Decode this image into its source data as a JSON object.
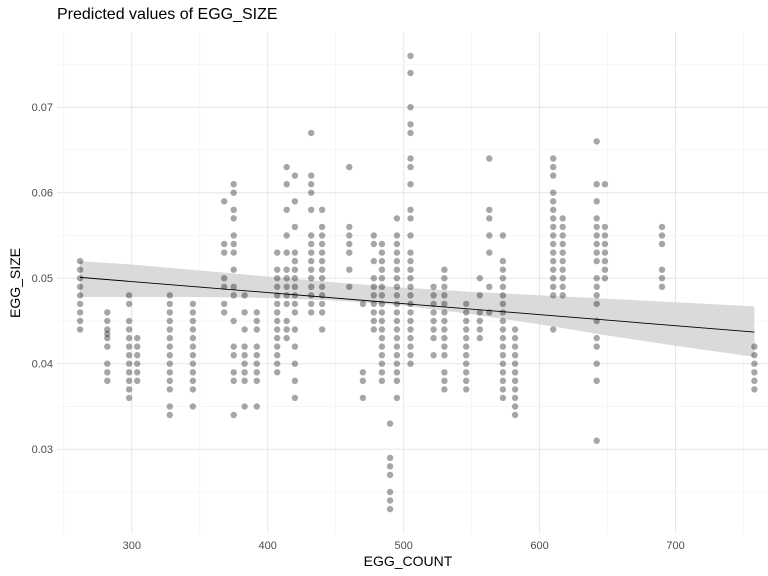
{
  "chart_data": {
    "type": "scatter",
    "title": "Predicted values of EGG_SIZE",
    "xlabel": "EGG_COUNT",
    "ylabel": "EGG_SIZE",
    "xlim": [
      245,
      768
    ],
    "ylim": [
      0.0202,
      0.0788
    ],
    "x_ticks": [
      300,
      400,
      500,
      600,
      700
    ],
    "y_ticks": [
      0.03,
      0.04,
      0.05,
      0.06,
      0.07
    ],
    "grid": true,
    "point_color": "#000000",
    "point_alpha": 0.35,
    "band_color": "#d4d4d4",
    "line_color": "#000000",
    "fit_line": {
      "x": [
        262,
        758
      ],
      "y": [
        0.0501,
        0.0437
      ]
    },
    "confidence_band": {
      "x": [
        262,
        300,
        350,
        400,
        450,
        500,
        550,
        600,
        650,
        700,
        758
      ],
      "lower": [
        0.0478,
        0.0478,
        0.0478,
        0.0477,
        0.0474,
        0.0468,
        0.0458,
        0.0446,
        0.0433,
        0.0421,
        0.0408
      ],
      "upper": [
        0.052,
        0.0516,
        0.0509,
        0.0502,
        0.0495,
        0.0489,
        0.0484,
        0.048,
        0.0476,
        0.0472,
        0.0467
      ]
    },
    "points": [
      [
        262,
        0.052
      ],
      [
        262,
        0.051
      ],
      [
        262,
        0.05
      ],
      [
        262,
        0.049
      ],
      [
        262,
        0.048
      ],
      [
        262,
        0.047
      ],
      [
        262,
        0.046
      ],
      [
        262,
        0.045
      ],
      [
        262,
        0.044
      ],
      [
        282,
        0.046
      ],
      [
        282,
        0.045
      ],
      [
        282,
        0.044
      ],
      [
        282,
        0.0435
      ],
      [
        282,
        0.043
      ],
      [
        282,
        0.042
      ],
      [
        282,
        0.04
      ],
      [
        282,
        0.039
      ],
      [
        282,
        0.038
      ],
      [
        298,
        0.048
      ],
      [
        298,
        0.047
      ],
      [
        298,
        0.045
      ],
      [
        298,
        0.044
      ],
      [
        298,
        0.043
      ],
      [
        298,
        0.042
      ],
      [
        298,
        0.041
      ],
      [
        298,
        0.04
      ],
      [
        298,
        0.039
      ],
      [
        298,
        0.038
      ],
      [
        298,
        0.037
      ],
      [
        298,
        0.036
      ],
      [
        304,
        0.043
      ],
      [
        304,
        0.042
      ],
      [
        304,
        0.041
      ],
      [
        304,
        0.04
      ],
      [
        304,
        0.039
      ],
      [
        304,
        0.038
      ],
      [
        328,
        0.048
      ],
      [
        328,
        0.047
      ],
      [
        328,
        0.046
      ],
      [
        328,
        0.045
      ],
      [
        328,
        0.044
      ],
      [
        328,
        0.043
      ],
      [
        328,
        0.042
      ],
      [
        328,
        0.041
      ],
      [
        328,
        0.04
      ],
      [
        328,
        0.039
      ],
      [
        328,
        0.038
      ],
      [
        328,
        0.037
      ],
      [
        328,
        0.035
      ],
      [
        328,
        0.034
      ],
      [
        345,
        0.047
      ],
      [
        345,
        0.046
      ],
      [
        345,
        0.045
      ],
      [
        345,
        0.044
      ],
      [
        345,
        0.043
      ],
      [
        345,
        0.042
      ],
      [
        345,
        0.041
      ],
      [
        345,
        0.04
      ],
      [
        345,
        0.039
      ],
      [
        345,
        0.038
      ],
      [
        345,
        0.037
      ],
      [
        345,
        0.035
      ],
      [
        368,
        0.059
      ],
      [
        368,
        0.054
      ],
      [
        368,
        0.053
      ],
      [
        368,
        0.05
      ],
      [
        368,
        0.049
      ],
      [
        368,
        0.047
      ],
      [
        368,
        0.046
      ],
      [
        375,
        0.061
      ],
      [
        375,
        0.06
      ],
      [
        375,
        0.058
      ],
      [
        375,
        0.057
      ],
      [
        375,
        0.055
      ],
      [
        375,
        0.054
      ],
      [
        375,
        0.053
      ],
      [
        375,
        0.051
      ],
      [
        375,
        0.049
      ],
      [
        375,
        0.048
      ],
      [
        375,
        0.045
      ],
      [
        375,
        0.042
      ],
      [
        375,
        0.041
      ],
      [
        375,
        0.039
      ],
      [
        375,
        0.038
      ],
      [
        375,
        0.034
      ],
      [
        383,
        0.048
      ],
      [
        383,
        0.046
      ],
      [
        383,
        0.044
      ],
      [
        383,
        0.042
      ],
      [
        383,
        0.041
      ],
      [
        383,
        0.04
      ],
      [
        383,
        0.039
      ],
      [
        383,
        0.038
      ],
      [
        383,
        0.035
      ],
      [
        392,
        0.046
      ],
      [
        392,
        0.045
      ],
      [
        392,
        0.044
      ],
      [
        392,
        0.042
      ],
      [
        392,
        0.041
      ],
      [
        392,
        0.04
      ],
      [
        392,
        0.039
      ],
      [
        392,
        0.038
      ],
      [
        392,
        0.035
      ],
      [
        407,
        0.053
      ],
      [
        407,
        0.051
      ],
      [
        407,
        0.05
      ],
      [
        407,
        0.049
      ],
      [
        407,
        0.048
      ],
      [
        407,
        0.047
      ],
      [
        407,
        0.046
      ],
      [
        407,
        0.045
      ],
      [
        407,
        0.044
      ],
      [
        407,
        0.043
      ],
      [
        407,
        0.042
      ],
      [
        407,
        0.041
      ],
      [
        407,
        0.04
      ],
      [
        407,
        0.039
      ],
      [
        414,
        0.063
      ],
      [
        414,
        0.061
      ],
      [
        414,
        0.058
      ],
      [
        414,
        0.055
      ],
      [
        414,
        0.053
      ],
      [
        414,
        0.051
      ],
      [
        414,
        0.05
      ],
      [
        414,
        0.049
      ],
      [
        414,
        0.048
      ],
      [
        414,
        0.047
      ],
      [
        414,
        0.045
      ],
      [
        414,
        0.044
      ],
      [
        414,
        0.043
      ],
      [
        420,
        0.062
      ],
      [
        420,
        0.059
      ],
      [
        420,
        0.056
      ],
      [
        420,
        0.053
      ],
      [
        420,
        0.052
      ],
      [
        420,
        0.051
      ],
      [
        420,
        0.05
      ],
      [
        420,
        0.049
      ],
      [
        420,
        0.048
      ],
      [
        420,
        0.047
      ],
      [
        420,
        0.046
      ],
      [
        420,
        0.044
      ],
      [
        420,
        0.042
      ],
      [
        420,
        0.04
      ],
      [
        420,
        0.038
      ],
      [
        420,
        0.036
      ],
      [
        432,
        0.067
      ],
      [
        432,
        0.062
      ],
      [
        432,
        0.061
      ],
      [
        432,
        0.06
      ],
      [
        432,
        0.058
      ],
      [
        432,
        0.055
      ],
      [
        432,
        0.054
      ],
      [
        432,
        0.053
      ],
      [
        432,
        0.052
      ],
      [
        432,
        0.051
      ],
      [
        432,
        0.05
      ],
      [
        432,
        0.049
      ],
      [
        432,
        0.048
      ],
      [
        432,
        0.047
      ],
      [
        432,
        0.046
      ],
      [
        440,
        0.058
      ],
      [
        440,
        0.056
      ],
      [
        440,
        0.055
      ],
      [
        440,
        0.054
      ],
      [
        440,
        0.053
      ],
      [
        440,
        0.052
      ],
      [
        440,
        0.051
      ],
      [
        440,
        0.05
      ],
      [
        440,
        0.049
      ],
      [
        440,
        0.048
      ],
      [
        440,
        0.047
      ],
      [
        440,
        0.046
      ],
      [
        440,
        0.044
      ],
      [
        460,
        0.063
      ],
      [
        460,
        0.056
      ],
      [
        460,
        0.055
      ],
      [
        460,
        0.054
      ],
      [
        460,
        0.053
      ],
      [
        460,
        0.051
      ],
      [
        460,
        0.049
      ],
      [
        470,
        0.047
      ],
      [
        470,
        0.039
      ],
      [
        470,
        0.038
      ],
      [
        470,
        0.036
      ],
      [
        478,
        0.055
      ],
      [
        478,
        0.054
      ],
      [
        478,
        0.052
      ],
      [
        478,
        0.05
      ],
      [
        478,
        0.049
      ],
      [
        478,
        0.048
      ],
      [
        478,
        0.047
      ],
      [
        478,
        0.046
      ],
      [
        478,
        0.045
      ],
      [
        478,
        0.044
      ],
      [
        484,
        0.054
      ],
      [
        484,
        0.053
      ],
      [
        484,
        0.052
      ],
      [
        484,
        0.051
      ],
      [
        484,
        0.05
      ],
      [
        484,
        0.049
      ],
      [
        484,
        0.048
      ],
      [
        484,
        0.047
      ],
      [
        484,
        0.046
      ],
      [
        484,
        0.045
      ],
      [
        484,
        0.044
      ],
      [
        484,
        0.043
      ],
      [
        484,
        0.042
      ],
      [
        484,
        0.041
      ],
      [
        484,
        0.04
      ],
      [
        484,
        0.039
      ],
      [
        484,
        0.038
      ],
      [
        490,
        0.033
      ],
      [
        490,
        0.029
      ],
      [
        490,
        0.028
      ],
      [
        490,
        0.027
      ],
      [
        490,
        0.025
      ],
      [
        490,
        0.024
      ],
      [
        490,
        0.023
      ],
      [
        495,
        0.057
      ],
      [
        495,
        0.055
      ],
      [
        495,
        0.054
      ],
      [
        495,
        0.053
      ],
      [
        495,
        0.052
      ],
      [
        495,
        0.051
      ],
      [
        495,
        0.05
      ],
      [
        495,
        0.049
      ],
      [
        495,
        0.048
      ],
      [
        495,
        0.047
      ],
      [
        495,
        0.046
      ],
      [
        495,
        0.045
      ],
      [
        495,
        0.044
      ],
      [
        495,
        0.043
      ],
      [
        495,
        0.042
      ],
      [
        495,
        0.041
      ],
      [
        495,
        0.04
      ],
      [
        495,
        0.039
      ],
      [
        495,
        0.038
      ],
      [
        495,
        0.036
      ],
      [
        505,
        0.076
      ],
      [
        505,
        0.074
      ],
      [
        505,
        0.07
      ],
      [
        505,
        0.068
      ],
      [
        505,
        0.067
      ],
      [
        505,
        0.064
      ],
      [
        505,
        0.063
      ],
      [
        505,
        0.061
      ],
      [
        505,
        0.058
      ],
      [
        505,
        0.057
      ],
      [
        505,
        0.055
      ],
      [
        505,
        0.053
      ],
      [
        505,
        0.052
      ],
      [
        505,
        0.051
      ],
      [
        505,
        0.05
      ],
      [
        505,
        0.049
      ],
      [
        505,
        0.048
      ],
      [
        505,
        0.047
      ],
      [
        505,
        0.046
      ],
      [
        505,
        0.045
      ],
      [
        505,
        0.044
      ],
      [
        505,
        0.043
      ],
      [
        505,
        0.042
      ],
      [
        505,
        0.041
      ],
      [
        505,
        0.04
      ],
      [
        522,
        0.049
      ],
      [
        522,
        0.048
      ],
      [
        522,
        0.047
      ],
      [
        522,
        0.046
      ],
      [
        522,
        0.045
      ],
      [
        522,
        0.044
      ],
      [
        522,
        0.043
      ],
      [
        522,
        0.041
      ],
      [
        530,
        0.051
      ],
      [
        530,
        0.05
      ],
      [
        530,
        0.049
      ],
      [
        530,
        0.048
      ],
      [
        530,
        0.047
      ],
      [
        530,
        0.046
      ],
      [
        530,
        0.045
      ],
      [
        530,
        0.044
      ],
      [
        530,
        0.043
      ],
      [
        530,
        0.042
      ],
      [
        530,
        0.041
      ],
      [
        530,
        0.039
      ],
      [
        530,
        0.038
      ],
      [
        530,
        0.037
      ],
      [
        546,
        0.047
      ],
      [
        546,
        0.046
      ],
      [
        546,
        0.045
      ],
      [
        546,
        0.044
      ],
      [
        546,
        0.043
      ],
      [
        546,
        0.042
      ],
      [
        546,
        0.041
      ],
      [
        546,
        0.04
      ],
      [
        546,
        0.039
      ],
      [
        546,
        0.038
      ],
      [
        546,
        0.037
      ],
      [
        556,
        0.05
      ],
      [
        556,
        0.048
      ],
      [
        556,
        0.046
      ],
      [
        556,
        0.045
      ],
      [
        556,
        0.044
      ],
      [
        556,
        0.043
      ],
      [
        563,
        0.064
      ],
      [
        563,
        0.058
      ],
      [
        563,
        0.057
      ],
      [
        563,
        0.055
      ],
      [
        563,
        0.053
      ],
      [
        563,
        0.049
      ],
      [
        563,
        0.046
      ],
      [
        573,
        0.055
      ],
      [
        573,
        0.052
      ],
      [
        573,
        0.051
      ],
      [
        573,
        0.05
      ],
      [
        573,
        0.049
      ],
      [
        573,
        0.048
      ],
      [
        573,
        0.047
      ],
      [
        573,
        0.046
      ],
      [
        573,
        0.045
      ],
      [
        573,
        0.044
      ],
      [
        573,
        0.043
      ],
      [
        573,
        0.042
      ],
      [
        573,
        0.041
      ],
      [
        573,
        0.04
      ],
      [
        573,
        0.039
      ],
      [
        573,
        0.038
      ],
      [
        573,
        0.037
      ],
      [
        573,
        0.036
      ],
      [
        582,
        0.044
      ],
      [
        582,
        0.043
      ],
      [
        582,
        0.042
      ],
      [
        582,
        0.041
      ],
      [
        582,
        0.04
      ],
      [
        582,
        0.039
      ],
      [
        582,
        0.038
      ],
      [
        582,
        0.037
      ],
      [
        582,
        0.036
      ],
      [
        582,
        0.035
      ],
      [
        582,
        0.034
      ],
      [
        610,
        0.064
      ],
      [
        610,
        0.063
      ],
      [
        610,
        0.062
      ],
      [
        610,
        0.06
      ],
      [
        610,
        0.059
      ],
      [
        610,
        0.058
      ],
      [
        610,
        0.057
      ],
      [
        610,
        0.056
      ],
      [
        610,
        0.055
      ],
      [
        610,
        0.054
      ],
      [
        610,
        0.053
      ],
      [
        610,
        0.052
      ],
      [
        610,
        0.051
      ],
      [
        610,
        0.05
      ],
      [
        610,
        0.049
      ],
      [
        610,
        0.048
      ],
      [
        610,
        0.044
      ],
      [
        617,
        0.057
      ],
      [
        617,
        0.056
      ],
      [
        617,
        0.055
      ],
      [
        617,
        0.054
      ],
      [
        617,
        0.053
      ],
      [
        617,
        0.052
      ],
      [
        617,
        0.051
      ],
      [
        617,
        0.05
      ],
      [
        617,
        0.049
      ],
      [
        617,
        0.048
      ],
      [
        642,
        0.066
      ],
      [
        642,
        0.061
      ],
      [
        642,
        0.059
      ],
      [
        642,
        0.057
      ],
      [
        642,
        0.056
      ],
      [
        642,
        0.055
      ],
      [
        642,
        0.054
      ],
      [
        642,
        0.053
      ],
      [
        642,
        0.052
      ],
      [
        642,
        0.05
      ],
      [
        642,
        0.049
      ],
      [
        642,
        0.048
      ],
      [
        642,
        0.047
      ],
      [
        642,
        0.045
      ],
      [
        642,
        0.043
      ],
      [
        642,
        0.042
      ],
      [
        642,
        0.04
      ],
      [
        642,
        0.038
      ],
      [
        642,
        0.031
      ],
      [
        648,
        0.061
      ],
      [
        648,
        0.056
      ],
      [
        648,
        0.055
      ],
      [
        648,
        0.054
      ],
      [
        648,
        0.053
      ],
      [
        648,
        0.052
      ],
      [
        648,
        0.051
      ],
      [
        648,
        0.05
      ],
      [
        690,
        0.056
      ],
      [
        690,
        0.055
      ],
      [
        690,
        0.054
      ],
      [
        690,
        0.051
      ],
      [
        690,
        0.05
      ],
      [
        690,
        0.049
      ],
      [
        758,
        0.042
      ],
      [
        758,
        0.041
      ],
      [
        758,
        0.04
      ],
      [
        758,
        0.039
      ],
      [
        758,
        0.038
      ],
      [
        758,
        0.037
      ]
    ]
  }
}
